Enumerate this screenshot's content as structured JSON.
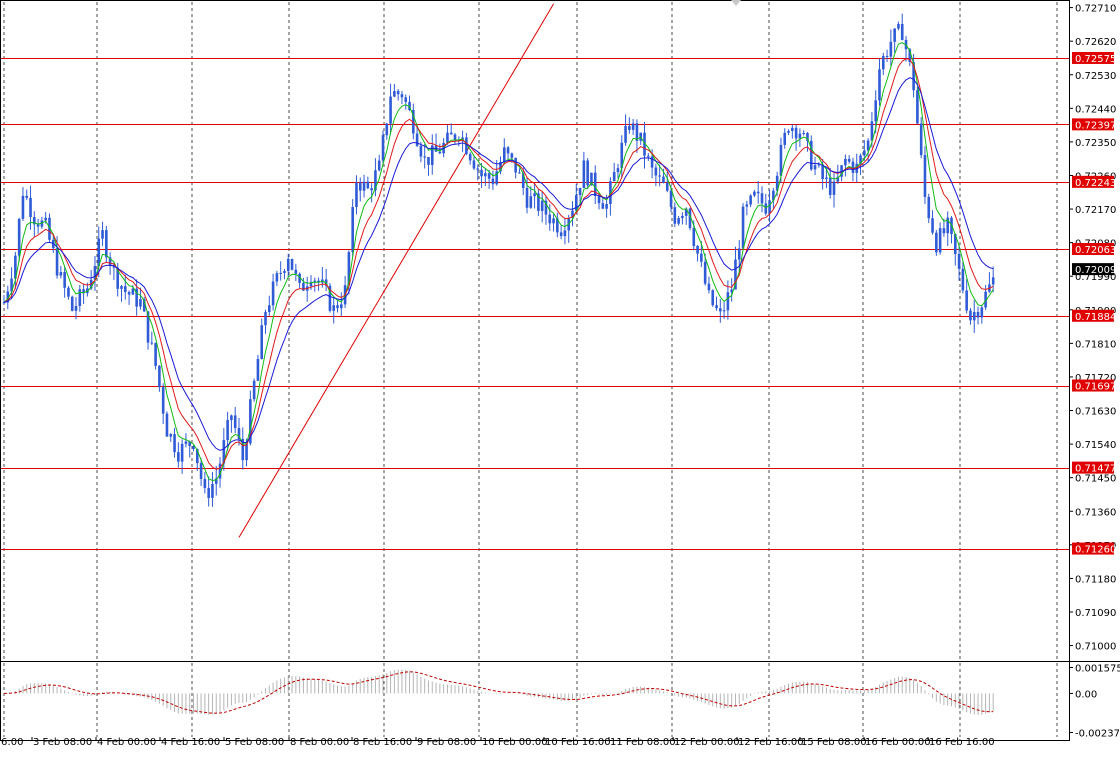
{
  "chart_data": {
    "type": "candlestick",
    "price_panel": {
      "ylim": [
        0.70964,
        0.72725
      ],
      "price_ticks": [
        "0.72710",
        "0.72620",
        "0.72530",
        "0.72440",
        "0.72350",
        "0.72260",
        "0.72170",
        "0.72080",
        "0.71990",
        "0.71900",
        "0.71810",
        "0.71720",
        "0.71630",
        "0.71540",
        "0.71450",
        "0.71360",
        "0.71270",
        "0.71180",
        "0.71090",
        "0.71000"
      ],
      "horizontal_levels": [
        "0.72575",
        "0.72397",
        "0.72243",
        "0.72063",
        "0.71884",
        "0.71697",
        "0.71477",
        "0.71260"
      ],
      "current_price": "0.72009",
      "trend_line": [
        {
          "bar": 62,
          "price": 0.7129
        },
        {
          "bar": 145,
          "price": 0.7272
        }
      ],
      "price_path": [
        [
          0,
          0.7192
        ],
        [
          3,
          0.7205
        ],
        [
          5,
          0.7222
        ],
        [
          8,
          0.7215
        ],
        [
          11,
          0.7212
        ],
        [
          15,
          0.7198
        ],
        [
          18,
          0.719
        ],
        [
          22,
          0.7196
        ],
        [
          26,
          0.721
        ],
        [
          29,
          0.72
        ],
        [
          32,
          0.7195
        ],
        [
          36,
          0.7192
        ],
        [
          40,
          0.7175
        ],
        [
          43,
          0.7158
        ],
        [
          46,
          0.7152
        ],
        [
          50,
          0.7155
        ],
        [
          53,
          0.714
        ],
        [
          56,
          0.7145
        ],
        [
          60,
          0.7162
        ],
        [
          63,
          0.715
        ],
        [
          66,
          0.717
        ],
        [
          69,
          0.719
        ],
        [
          72,
          0.7198
        ],
        [
          75,
          0.7205
        ],
        [
          78,
          0.7195
        ],
        [
          81,
          0.72
        ],
        [
          84,
          0.7196
        ],
        [
          87,
          0.719
        ],
        [
          90,
          0.7195
        ],
        [
          93,
          0.7225
        ],
        [
          96,
          0.7222
        ],
        [
          99,
          0.7228
        ],
        [
          102,
          0.7248
        ],
        [
          105,
          0.7248
        ],
        [
          108,
          0.724
        ],
        [
          111,
          0.723
        ],
        [
          114,
          0.7232
        ],
        [
          117,
          0.7235
        ],
        [
          120,
          0.7238
        ],
        [
          123,
          0.7232
        ],
        [
          126,
          0.7226
        ],
        [
          129,
          0.7225
        ],
        [
          132,
          0.7232
        ],
        [
          135,
          0.7228
        ],
        [
          138,
          0.722
        ],
        [
          141,
          0.7218
        ],
        [
          144,
          0.7215
        ],
        [
          147,
          0.7212
        ],
        [
          150,
          0.7218
        ],
        [
          153,
          0.7228
        ],
        [
          156,
          0.7222
        ],
        [
          159,
          0.7218
        ],
        [
          162,
          0.723
        ],
        [
          165,
          0.724
        ],
        [
          168,
          0.7235
        ],
        [
          171,
          0.7227
        ],
        [
          174,
          0.7223
        ],
        [
          177,
          0.7215
        ],
        [
          180,
          0.7218
        ],
        [
          183,
          0.7205
        ],
        [
          186,
          0.7193
        ],
        [
          189,
          0.7188
        ],
        [
          192,
          0.7196
        ],
        [
          195,
          0.7215
        ],
        [
          198,
          0.722
        ],
        [
          201,
          0.7218
        ],
        [
          204,
          0.7228
        ],
        [
          207,
          0.724
        ],
        [
          210,
          0.7238
        ],
        [
          213,
          0.723
        ],
        [
          216,
          0.7225
        ],
        [
          219,
          0.7222
        ],
        [
          222,
          0.723
        ],
        [
          225,
          0.7228
        ],
        [
          228,
          0.7235
        ],
        [
          231,
          0.7255
        ],
        [
          234,
          0.7262
        ],
        [
          237,
          0.7265
        ],
        [
          240,
          0.725
        ],
        [
          243,
          0.722
        ],
        [
          246,
          0.7208
        ],
        [
          249,
          0.7212
        ],
        [
          252,
          0.72
        ],
        [
          255,
          0.7188
        ],
        [
          258,
          0.7192
        ],
        [
          261,
          0.7198
        ]
      ]
    },
    "oscillator_panel": {
      "ticks": [
        "0.001575",
        "0.00",
        "-0.002374"
      ],
      "ylim": [
        -0.00265,
        0.00185
      ]
    },
    "x_labels": [
      "6:00",
      "3 Feb 08:00",
      "4 Feb 00:00",
      "4 Feb 16:00",
      "5 Feb 08:00",
      "8 Feb 00:00",
      "8 Feb 16:00",
      "9 Feb 08:00",
      "10 Feb 00:00",
      "10 Feb 16:00",
      "11 Feb 08:00",
      "12 Feb 00:00",
      "12 Feb 16:00",
      "15 Feb 08:00",
      "16 Feb 00:00",
      "16 Feb 16:00"
    ],
    "colors": {
      "candle": "#2f5bd6",
      "ma_fast": "#11bb11",
      "ma_mid": "#e11a1a",
      "ma_slow": "#1a1ad6",
      "level": "#e00000",
      "trend": "#e00000",
      "grid": "#000000",
      "oscillator": "#c00000",
      "histogram": "#b4b4b4"
    }
  }
}
